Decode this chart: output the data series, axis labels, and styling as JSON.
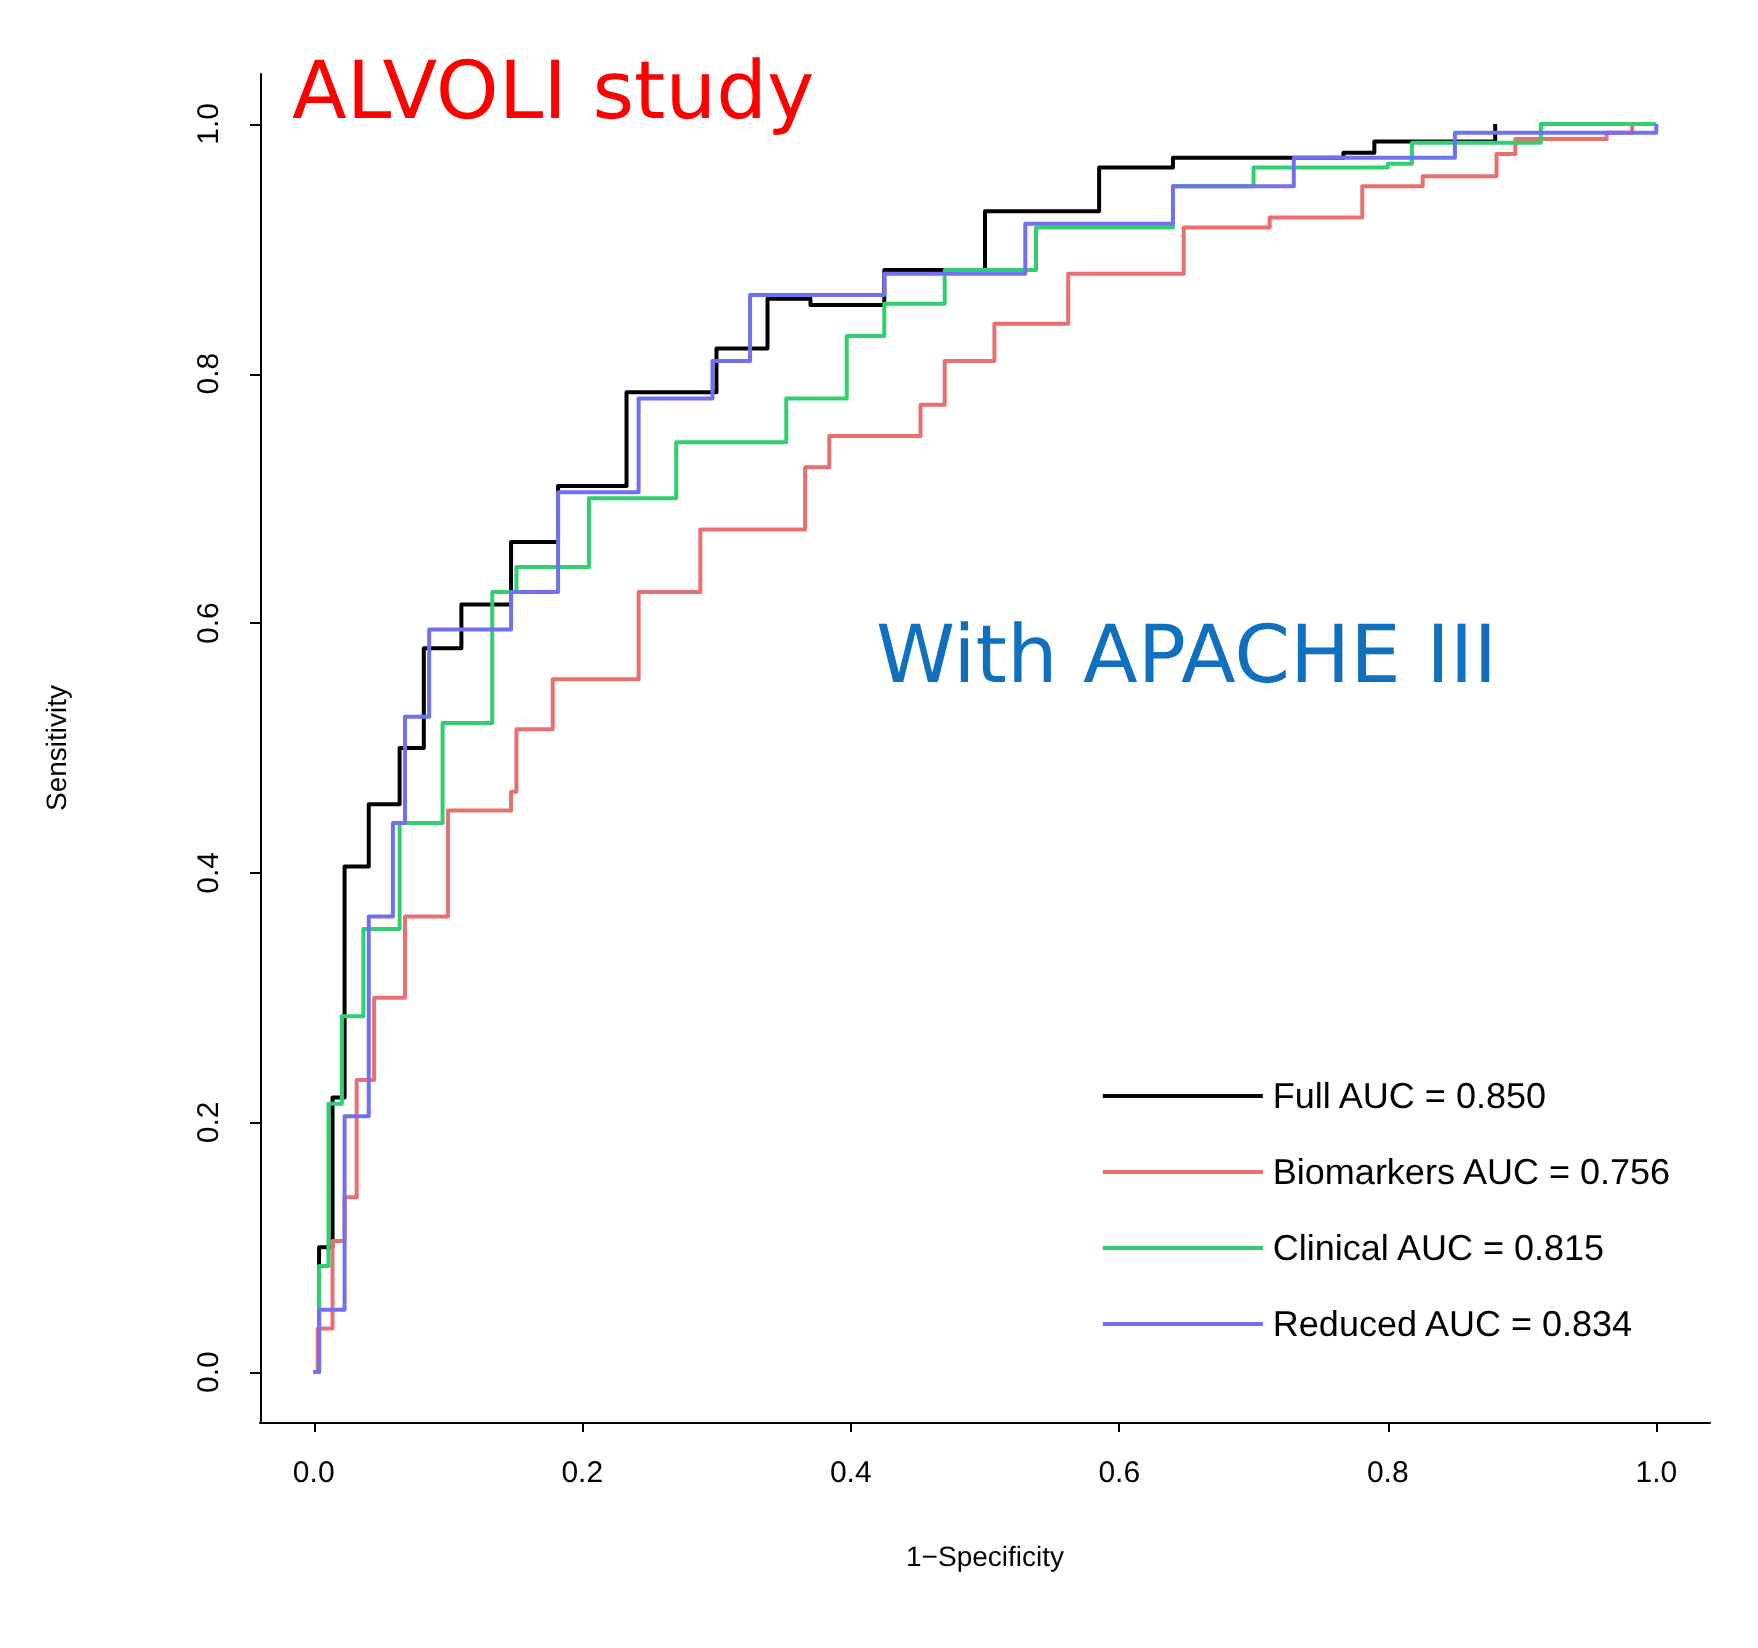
{
  "chart_data": {
    "type": "step",
    "xlabel": "1−Specificity",
    "ylabel": "Sensitivity",
    "annotations": [
      "ALVOLI study",
      "With APACHE III"
    ],
    "xlim": [
      -0.04,
      1.04
    ],
    "ylim": [
      -0.04,
      1.04
    ],
    "xticks": [
      {
        "value": 0,
        "label": "0.0"
      },
      {
        "value": 0.2,
        "label": "0.2"
      },
      {
        "value": 0.4,
        "label": "0.4"
      },
      {
        "value": 0.6,
        "label": "0.6"
      },
      {
        "value": 0.8,
        "label": "0.8"
      },
      {
        "value": 1,
        "label": "1.0"
      }
    ],
    "yticks": [
      {
        "value": 0,
        "label": "0.0"
      },
      {
        "value": 0.2,
        "label": "0.2"
      },
      {
        "value": 0.4,
        "label": "0.4"
      },
      {
        "value": 0.6,
        "label": "0.6"
      },
      {
        "value": 0.8,
        "label": "0.8"
      },
      {
        "value": 1,
        "label": "1.0"
      }
    ],
    "legend": "bottom right",
    "grid": false,
    "line_style": "solid",
    "marker": "none",
    "series": [
      {
        "name": "Full AUC = 0.850",
        "color": "#000000",
        "x": [
          0,
          0.004,
          0.014,
          0.023,
          0.041,
          0.064,
          0.082,
          0.11,
          0.147,
          0.182,
          0.233,
          0.3,
          0.338,
          0.37,
          0.425,
          0.5,
          0.585,
          0.64,
          0.767,
          0.79,
          0.88
        ],
        "values": [
          0,
          0.1,
          0.22,
          0.405,
          0.455,
          0.5,
          0.58,
          0.615,
          0.665,
          0.71,
          0.785,
          0.82,
          0.86,
          0.855,
          0.883,
          0.93,
          0.965,
          0.973,
          0.977,
          0.986,
          1
        ]
      },
      {
        "name": "Biomarkers AUC = 0.756",
        "color": "#e87070",
        "x": [
          0,
          0.003,
          0.014,
          0.023,
          0.032,
          0.045,
          0.068,
          0.1,
          0.147,
          0.151,
          0.178,
          0.242,
          0.288,
          0.366,
          0.384,
          0.452,
          0.47,
          0.507,
          0.562,
          0.648,
          0.712,
          0.781,
          0.826,
          0.881,
          0.895,
          0.963,
          0.982
        ],
        "values": [
          0,
          0.035,
          0.105,
          0.14,
          0.234,
          0.3,
          0.365,
          0.45,
          0.465,
          0.515,
          0.555,
          0.625,
          0.675,
          0.725,
          0.75,
          0.775,
          0.81,
          0.84,
          0.88,
          0.917,
          0.925,
          0.95,
          0.958,
          0.976,
          0.988,
          0.993,
          1
        ]
      },
      {
        "name": "Clinical AUC = 0.815",
        "color": "#30d070",
        "x": [
          0,
          0.004,
          0.011,
          0.021,
          0.037,
          0.064,
          0.096,
          0.133,
          0.151,
          0.205,
          0.27,
          0.352,
          0.397,
          0.425,
          0.47,
          0.538,
          0.64,
          0.7,
          0.8,
          0.818,
          0.914,
          1
        ],
        "values": [
          0,
          0.085,
          0.215,
          0.285,
          0.355,
          0.44,
          0.52,
          0.625,
          0.645,
          0.7,
          0.745,
          0.78,
          0.83,
          0.856,
          0.883,
          0.917,
          0.95,
          0.965,
          0.968,
          0.985,
          1,
          1
        ]
      },
      {
        "name": "Reduced AUC = 0.834",
        "color": "#7070f0",
        "x": [
          0,
          0.004,
          0.023,
          0.041,
          0.059,
          0.068,
          0.086,
          0.147,
          0.182,
          0.242,
          0.297,
          0.325,
          0.425,
          0.53,
          0.64,
          0.73,
          0.85,
          1
        ],
        "values": [
          0,
          0.05,
          0.205,
          0.365,
          0.44,
          0.525,
          0.595,
          0.625,
          0.705,
          0.78,
          0.81,
          0.863,
          0.88,
          0.92,
          0.95,
          0.973,
          0.993,
          1
        ]
      }
    ]
  }
}
